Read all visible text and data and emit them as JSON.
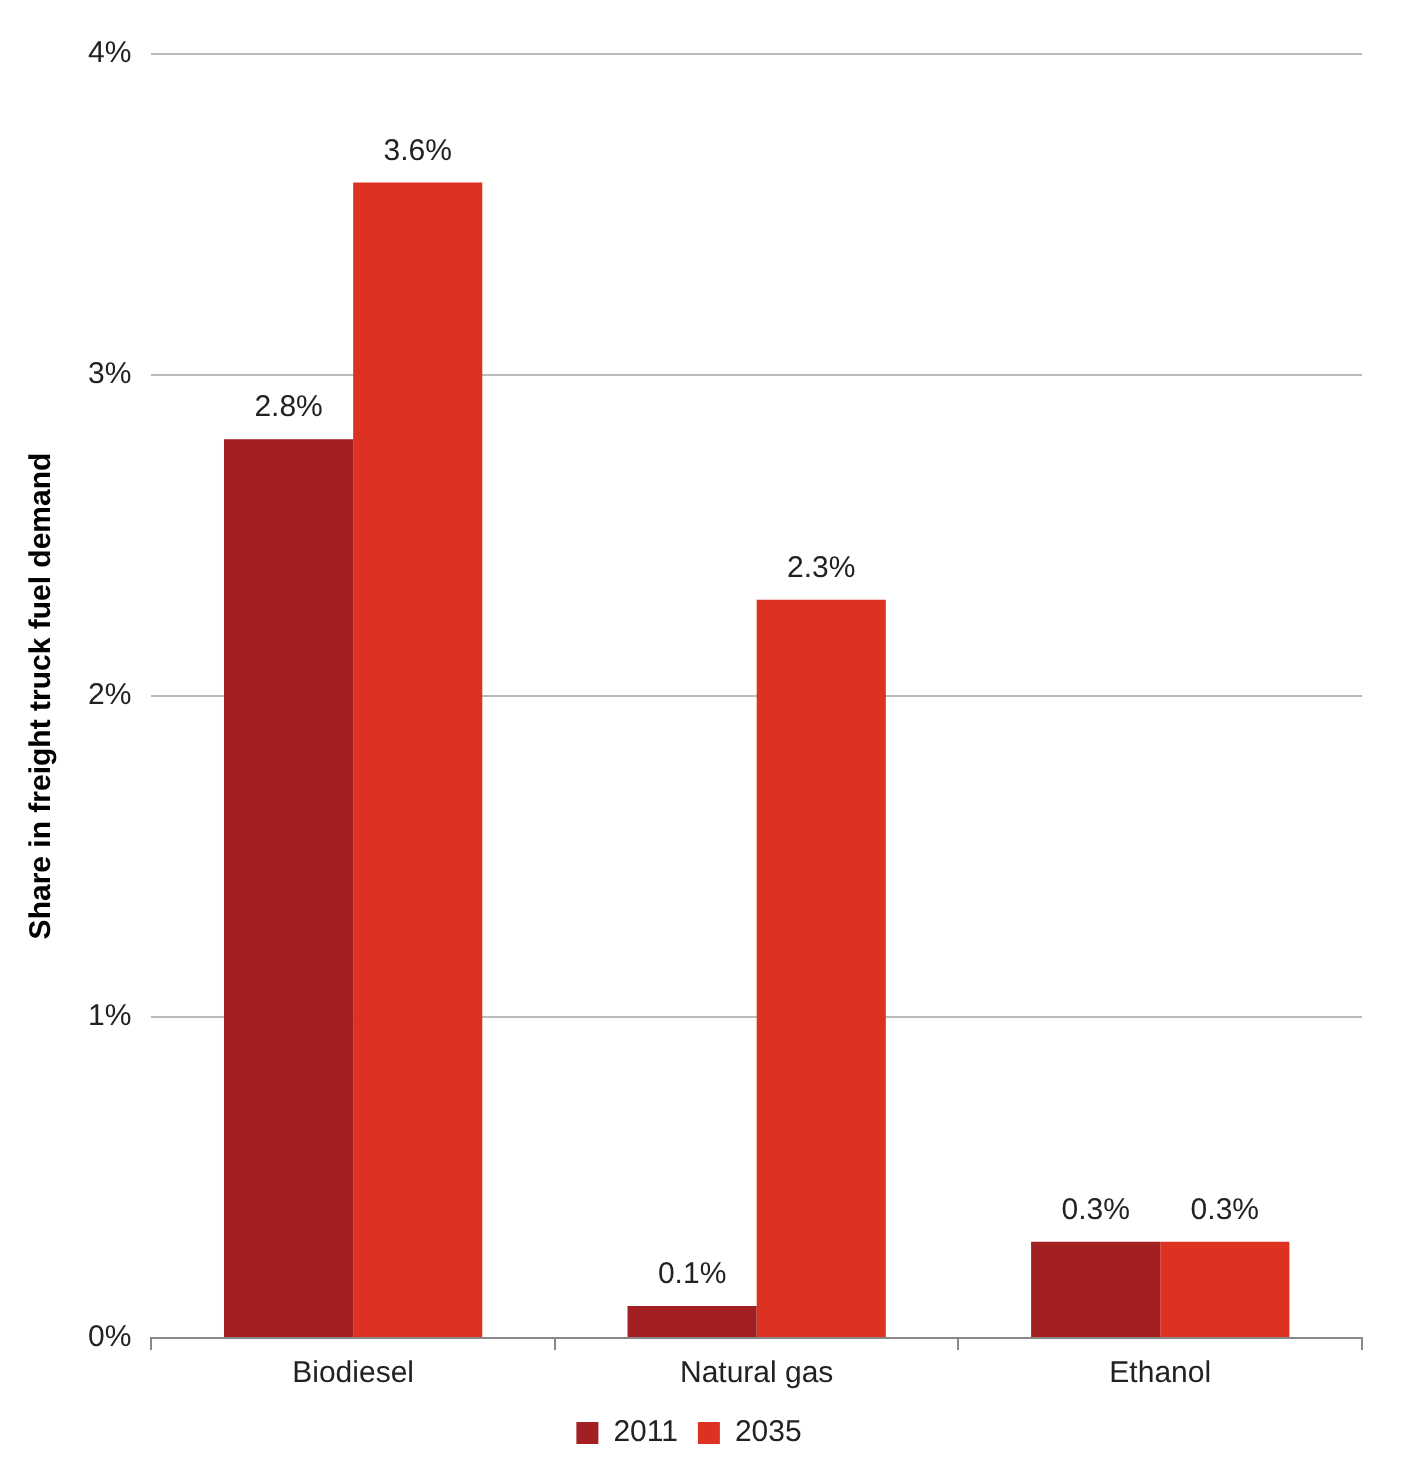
{
  "chart_data": {
    "type": "bar",
    "ylabel": "Share in freight truck fuel demand",
    "categories": [
      "Biodiesel",
      "Natural gas",
      "Ethanol"
    ],
    "series": [
      {
        "name": "2011",
        "color": "#a21f22",
        "values": [
          2.8,
          0.1,
          0.3
        ],
        "value_labels": [
          "2.8%",
          "0.1%",
          "0.3%"
        ]
      },
      {
        "name": "2035",
        "color": "#dd3222",
        "values": [
          3.6,
          2.3,
          0.3
        ],
        "value_labels": [
          "3.6%",
          "2.3%",
          "0.3%"
        ]
      }
    ],
    "ylim": [
      0,
      4
    ],
    "yticks": [
      {
        "value": 0,
        "label": "0%"
      },
      {
        "value": 1,
        "label": "1%"
      },
      {
        "value": 2,
        "label": "2%"
      },
      {
        "value": 3,
        "label": "3%"
      },
      {
        "value": 4,
        "label": "4%"
      }
    ],
    "grid": "y",
    "legend": "bottom"
  }
}
